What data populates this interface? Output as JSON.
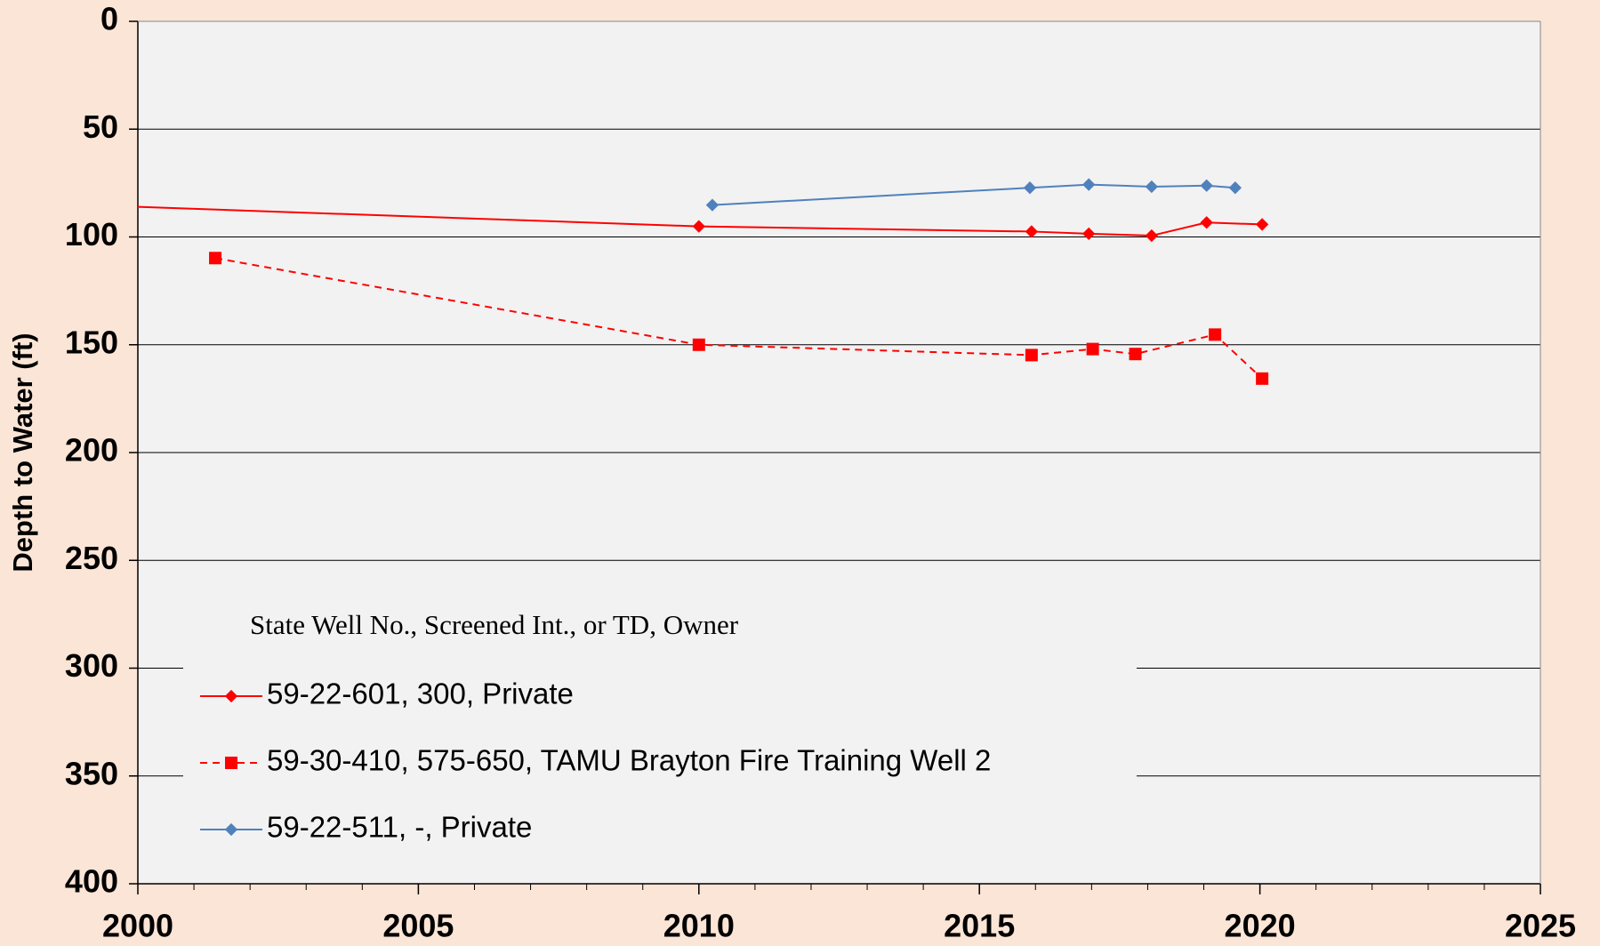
{
  "chart_data": {
    "type": "line",
    "y_label": "Depth to Water (ft)",
    "xlim": [
      2000,
      2025
    ],
    "xticks": [
      2000,
      2005,
      2010,
      2015,
      2020,
      2025
    ],
    "ylim": [
      0,
      400
    ],
    "yticks": [
      0,
      50,
      100,
      150,
      200,
      250,
      300,
      350,
      400
    ],
    "y_inverted": true,
    "grid": true,
    "legend_title": "State Well No., Screened Int., or TD, Owner",
    "legend_position": "lower left",
    "series": [
      {
        "name": "59-22-601, 300, Private",
        "color": "#ff0000",
        "dashed": false,
        "marker": "diamond",
        "x": [
          1999.5,
          2010.0,
          2015.93,
          2016.95,
          2018.07,
          2019.05,
          2020.04
        ],
        "values": [
          85.6,
          95.1,
          97.5,
          98.5,
          99.4,
          93.3,
          94.2
        ]
      },
      {
        "name": "59-30-410, 575-650, TAMU Brayton Fire Training Well 2",
        "color": "#ff0000",
        "dashed": true,
        "marker": "square",
        "x": [
          2001.38,
          2010.0,
          2015.93,
          2017.02,
          2017.78,
          2019.2,
          2020.04
        ],
        "values": [
          109.8,
          150,
          154.8,
          152,
          154.3,
          145.3,
          165.7
        ]
      },
      {
        "name": "59-22-511, -, Private",
        "color": "#4f81bd",
        "dashed": false,
        "marker": "diamond",
        "x": [
          2010.24,
          2015.9,
          2016.95,
          2018.07,
          2019.05,
          2019.56
        ],
        "values": [
          85.2,
          77.2,
          75.7,
          76.7,
          76.2,
          77.2
        ]
      }
    ]
  }
}
